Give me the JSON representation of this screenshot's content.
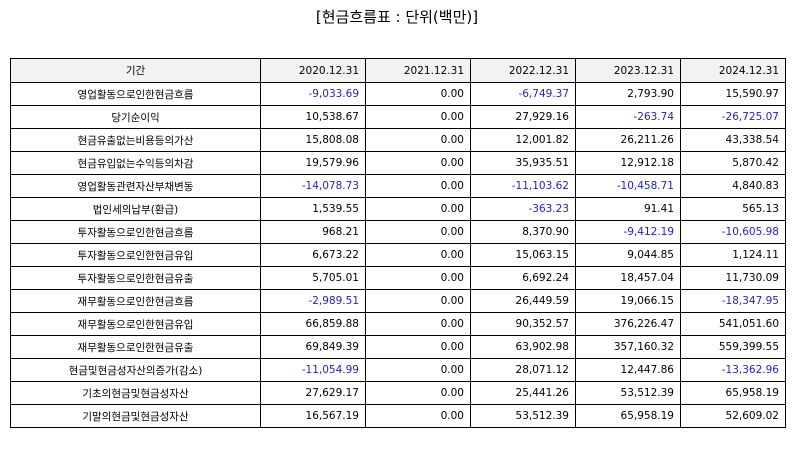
{
  "title": "[현금흐름표 : 단위(백만)]",
  "colors": {
    "negative": "#2222cc",
    "header_bg": "#f2f2f2"
  },
  "table": {
    "header_label": "기간",
    "periods": [
      "2020.12.31",
      "2021.12.31",
      "2022.12.31",
      "2023.12.31",
      "2024.12.31"
    ],
    "rows": [
      {
        "label": "영업활동으로인한현금흐름",
        "values": [
          "-9,033.69",
          "0.00",
          "-6,749.37",
          "2,793.90",
          "15,590.97"
        ]
      },
      {
        "label": "당기순이익",
        "values": [
          "10,538.67",
          "0.00",
          "27,929.16",
          "-263.74",
          "-26,725.07"
        ]
      },
      {
        "label": "현금유출없는비용등의가산",
        "values": [
          "15,808.08",
          "0.00",
          "12,001.82",
          "26,211.26",
          "43,338.54"
        ]
      },
      {
        "label": "현금유입없는수익등의차감",
        "values": [
          "19,579.96",
          "0.00",
          "35,935.51",
          "12,912.18",
          "5,870.42"
        ]
      },
      {
        "label": "영업활동관련자산부채변동",
        "values": [
          "-14,078.73",
          "0.00",
          "-11,103.62",
          "-10,458.71",
          "4,840.83"
        ]
      },
      {
        "label": "법인세의납부(환급)",
        "values": [
          "1,539.55",
          "0.00",
          "-363.23",
          "91.41",
          "565.13"
        ]
      },
      {
        "label": "투자활동으로인한현금흐름",
        "values": [
          "968.21",
          "0.00",
          "8,370.90",
          "-9,412.19",
          "-10,605.98"
        ]
      },
      {
        "label": "투자활동으로인한현금유입",
        "values": [
          "6,673.22",
          "0.00",
          "15,063.15",
          "9,044.85",
          "1,124.11"
        ]
      },
      {
        "label": "투자활동으로인한현금유출",
        "values": [
          "5,705.01",
          "0.00",
          "6,692.24",
          "18,457.04",
          "11,730.09"
        ]
      },
      {
        "label": "재무활동으로인한현금흐름",
        "values": [
          "-2,989.51",
          "0.00",
          "26,449.59",
          "19,066.15",
          "-18,347.95"
        ]
      },
      {
        "label": "재무활동으로인한현금유입",
        "values": [
          "66,859.88",
          "0.00",
          "90,352.57",
          "376,226.47",
          "541,051.60"
        ]
      },
      {
        "label": "재무활동으로인한현금유출",
        "values": [
          "69,849.39",
          "0.00",
          "63,902.98",
          "357,160.32",
          "559,399.55"
        ]
      },
      {
        "label": "현금및현금성자산의증가(감소)",
        "values": [
          "-11,054.99",
          "0.00",
          "28,071.12",
          "12,447.86",
          "-13,362.96"
        ]
      },
      {
        "label": "기초의현금및현금성자산",
        "values": [
          "27,629.17",
          "0.00",
          "25,441.26",
          "53,512.39",
          "65,958.19"
        ]
      },
      {
        "label": "기말의현금및현금성자산",
        "values": [
          "16,567.19",
          "0.00",
          "53,512.39",
          "65,958.19",
          "52,609.02"
        ]
      }
    ]
  }
}
